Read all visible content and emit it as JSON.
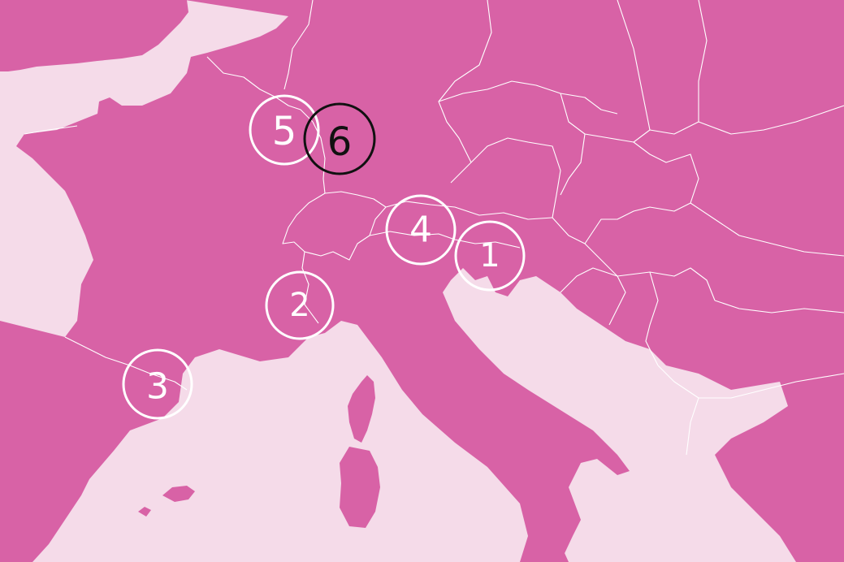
{
  "map": {
    "colors": {
      "sea": "#f5dbe9",
      "land": "#d862a6",
      "border": "#ffffff"
    },
    "markers": [
      {
        "id": "marker-1",
        "label": "1",
        "style": "white"
      },
      {
        "id": "marker-2",
        "label": "2",
        "style": "white"
      },
      {
        "id": "marker-3",
        "label": "3",
        "style": "white"
      },
      {
        "id": "marker-4",
        "label": "4",
        "style": "white"
      },
      {
        "id": "marker-5",
        "label": "5",
        "style": "white"
      },
      {
        "id": "marker-6",
        "label": "6",
        "style": "black"
      }
    ]
  }
}
